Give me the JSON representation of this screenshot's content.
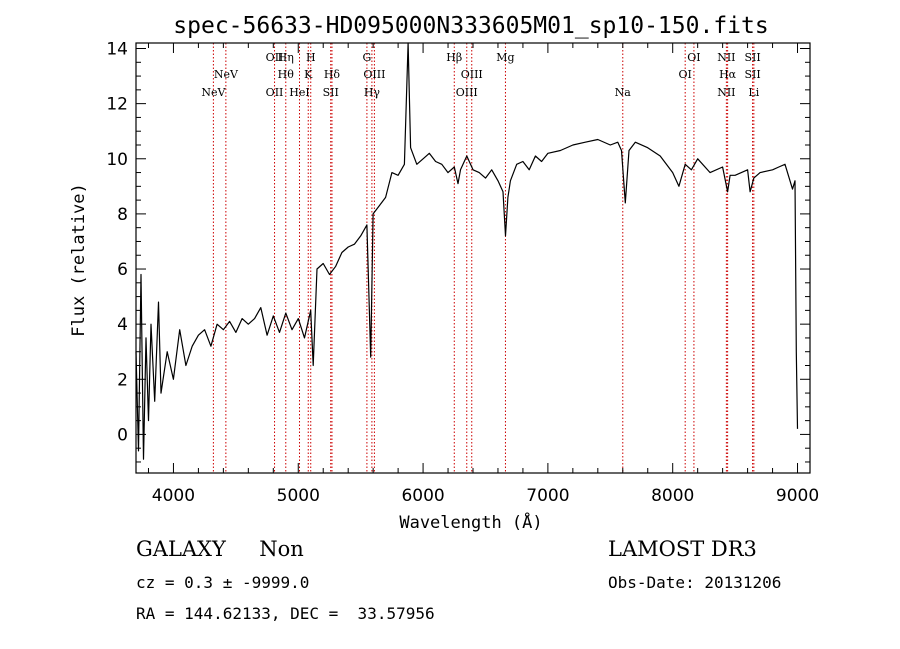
{
  "chart_data": {
    "type": "line",
    "title": "spec-56633-HD095000N333605M01_sp10-150.fits",
    "xlabel": "Wavelength (Å)",
    "ylabel": "Flux (relative)",
    "xlim": [
      3700,
      9100
    ],
    "ylim": [
      -1.4,
      14.2
    ],
    "x_ticks": [
      4000,
      5000,
      6000,
      7000,
      8000,
      9000
    ],
    "y_ticks": [
      0,
      2,
      4,
      6,
      8,
      10,
      12,
      14
    ],
    "series": [
      {
        "name": "flux",
        "x": [
          3700,
          3720,
          3740,
          3760,
          3780,
          3800,
          3820,
          3850,
          3880,
          3900,
          3950,
          4000,
          4050,
          4100,
          4150,
          4200,
          4250,
          4300,
          4350,
          4400,
          4450,
          4500,
          4550,
          4600,
          4650,
          4700,
          4750,
          4800,
          4850,
          4900,
          4950,
          5000,
          5050,
          5100,
          5120,
          5150,
          5200,
          5250,
          5300,
          5350,
          5400,
          5450,
          5500,
          5550,
          5580,
          5600,
          5650,
          5700,
          5750,
          5800,
          5850,
          5880,
          5900,
          5950,
          6000,
          6050,
          6100,
          6150,
          6200,
          6250,
          6280,
          6300,
          6350,
          6400,
          6450,
          6500,
          6550,
          6600,
          6640,
          6660,
          6680,
          6700,
          6750,
          6800,
          6850,
          6900,
          6950,
          7000,
          7100,
          7200,
          7300,
          7400,
          7500,
          7560,
          7590,
          7620,
          7650,
          7700,
          7800,
          7900,
          8000,
          8050,
          8100,
          8150,
          8200,
          8300,
          8400,
          8440,
          8460,
          8500,
          8600,
          8620,
          8650,
          8700,
          8800,
          8850,
          8900,
          8960,
          8980,
          8990,
          9000
        ],
        "y": [
          3.0,
          -0.6,
          5.8,
          -0.9,
          3.5,
          0.5,
          4.0,
          1.2,
          4.8,
          1.5,
          3.0,
          2.0,
          3.8,
          2.5,
          3.2,
          3.6,
          3.8,
          3.2,
          4.0,
          3.8,
          4.1,
          3.7,
          4.2,
          4.0,
          4.2,
          4.6,
          3.6,
          4.3,
          3.7,
          4.4,
          3.8,
          4.2,
          3.5,
          4.5,
          2.5,
          6.0,
          6.2,
          5.8,
          6.1,
          6.6,
          6.8,
          6.9,
          7.2,
          7.6,
          2.8,
          8.0,
          8.3,
          8.6,
          9.5,
          9.4,
          9.8,
          14.2,
          10.4,
          9.8,
          10.0,
          10.2,
          9.9,
          9.8,
          9.5,
          9.7,
          9.1,
          9.6,
          10.1,
          9.6,
          9.5,
          9.3,
          9.6,
          9.2,
          8.8,
          7.2,
          8.6,
          9.2,
          9.8,
          9.9,
          9.6,
          10.1,
          9.9,
          10.2,
          10.3,
          10.5,
          10.6,
          10.7,
          10.5,
          10.6,
          10.3,
          8.4,
          10.3,
          10.6,
          10.4,
          10.1,
          9.5,
          9.0,
          9.8,
          9.6,
          10.0,
          9.5,
          9.7,
          8.8,
          9.4,
          9.4,
          9.6,
          8.8,
          9.3,
          9.5,
          9.6,
          9.7,
          9.8,
          8.9,
          9.2,
          3.0,
          0.2
        ]
      }
    ],
    "spectral_lines": [
      {
        "label": "NeV",
        "wavelength": 4320,
        "row": 3
      },
      {
        "label": "NeV",
        "wavelength": 4420,
        "row": 2
      },
      {
        "label": "OII",
        "wavelength": 4810,
        "row": 1
      },
      {
        "label": "OII",
        "wavelength": 4810,
        "row": 3
      },
      {
        "label": "Hη",
        "wavelength": 4900,
        "row": 1
      },
      {
        "label": "Hθ",
        "wavelength": 4900,
        "row": 2
      },
      {
        "label": "HeI",
        "wavelength": 5010,
        "row": 3
      },
      {
        "label": "H",
        "wavelength": 5100,
        "row": 1
      },
      {
        "label": "K",
        "wavelength": 5080,
        "row": 2
      },
      {
        "label": "Hδ",
        "wavelength": 5270,
        "row": 2
      },
      {
        "label": "SII",
        "wavelength": 5260,
        "row": 3
      },
      {
        "label": "G",
        "wavelength": 5550,
        "row": 1
      },
      {
        "label": "OIII",
        "wavelength": 5610,
        "row": 2
      },
      {
        "label": "Hγ",
        "wavelength": 5590,
        "row": 3
      },
      {
        "label": "Hβ",
        "wavelength": 6250,
        "row": 1
      },
      {
        "label": "OIII",
        "wavelength": 6390,
        "row": 2
      },
      {
        "label": "OIII",
        "wavelength": 6350,
        "row": 3
      },
      {
        "label": "Mg",
        "wavelength": 6660,
        "row": 1
      },
      {
        "label": "Na",
        "wavelength": 7600,
        "row": 3
      },
      {
        "label": "OI",
        "wavelength": 8170,
        "row": 1
      },
      {
        "label": "OI",
        "wavelength": 8100,
        "row": 2
      },
      {
        "label": "NII",
        "wavelength": 8430,
        "row": 1
      },
      {
        "label": "Hα",
        "wavelength": 8440,
        "row": 2
      },
      {
        "label": "NII",
        "wavelength": 8430,
        "row": 3
      },
      {
        "label": "SII",
        "wavelength": 8640,
        "row": 1
      },
      {
        "label": "SII",
        "wavelength": 8640,
        "row": 2
      },
      {
        "label": "Li",
        "wavelength": 8650,
        "row": 3
      }
    ]
  },
  "colors": {
    "line": "#000000",
    "marker": "#cc0000",
    "axes": "#000000"
  },
  "footer": {
    "class_label": "GALAXY     Non",
    "cz": "cz = 0.3 ± -9999.0",
    "radec": "RA = 144.62133, DEC =  33.57956",
    "survey": "LAMOST DR3",
    "obs_date": "Obs-Date: 20131206"
  }
}
